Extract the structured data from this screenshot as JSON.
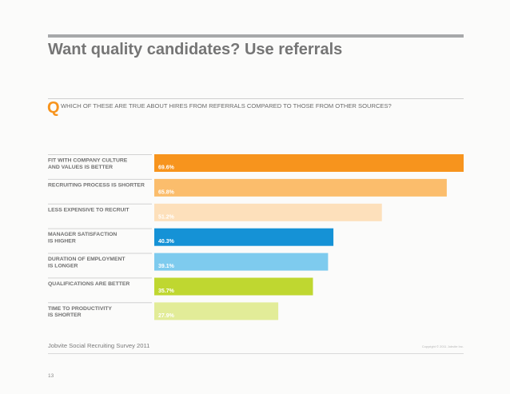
{
  "header": {
    "title": "Want quality candidates? Use referrals"
  },
  "question": {
    "mark": "Q",
    "text": "WHICH OF THESE ARE TRUE ABOUT HIRES FROM REFERRALS COMPARED TO THOSE FROM OTHER SOURCES?"
  },
  "chart_data": {
    "type": "bar",
    "orientation": "horizontal",
    "categories": [
      [
        "FIT WITH COMPANY CULTURE",
        "AND VALUES IS BETTER"
      ],
      [
        "RECRUITING PROCESS IS SHORTER"
      ],
      [
        "LESS EXPENSIVE TO RECRUIT"
      ],
      [
        "MANAGER SATISFACTION",
        "IS HIGHER"
      ],
      [
        "DURATION OF EMPLOYMENT",
        "IS LONGER"
      ],
      [
        "QUALIFICATIONS ARE BETTER"
      ],
      [
        "TIME TO PRODUCTIVITY",
        "IS SHORTER"
      ]
    ],
    "values": [
      69.6,
      65.8,
      51.2,
      40.3,
      39.1,
      35.7,
      27.9
    ],
    "value_labels": [
      "69.6%",
      "65.8%",
      "51.2%",
      "40.3%",
      "39.1%",
      "35.7%",
      "27.9%"
    ],
    "colors": [
      "#f7941d",
      "#fbbd6c",
      "#fde0bb",
      "#1592d6",
      "#7ecbee",
      "#bfd730",
      "#e2ec98"
    ],
    "xlim": [
      0,
      69.6
    ],
    "grid": false,
    "legend": "none"
  },
  "footer": {
    "source": "Jobvite Social Recruiting Survey 2011",
    "copyright": "Copyright © 2011 Jobvite Inc.",
    "page_number": "13"
  }
}
